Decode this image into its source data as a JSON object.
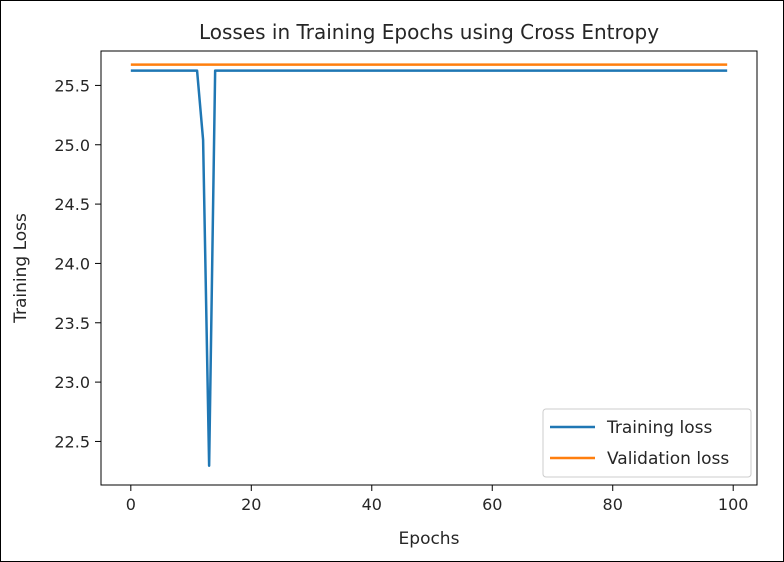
{
  "chart_data": {
    "type": "line",
    "title": "Losses in Training Epochs using Cross Entropy",
    "xlabel": "Epochs",
    "ylabel": "Training Loss",
    "xlim": [
      -4.95,
      103.95
    ],
    "ylim": [
      22.133,
      25.79
    ],
    "xticks": [
      0,
      20,
      40,
      60,
      80,
      100
    ],
    "yticks": [
      22.5,
      23.0,
      23.5,
      24.0,
      24.5,
      25.0,
      25.5
    ],
    "ytick_labels": [
      "22.5",
      "23.0",
      "23.5",
      "24.0",
      "24.5",
      "25.0",
      "25.5"
    ],
    "grid": false,
    "legend_position": "lower-right",
    "series": [
      {
        "name": "Training loss",
        "color": "#1f77b4",
        "x": [
          0,
          11,
          12,
          13,
          14,
          99
        ],
        "y": [
          25.625,
          25.625,
          25.04,
          22.295,
          25.625,
          25.625
        ]
      },
      {
        "name": "Validation loss",
        "color": "#ff7f0e",
        "x": [
          0,
          99
        ],
        "y": [
          25.675,
          25.675
        ]
      }
    ]
  }
}
